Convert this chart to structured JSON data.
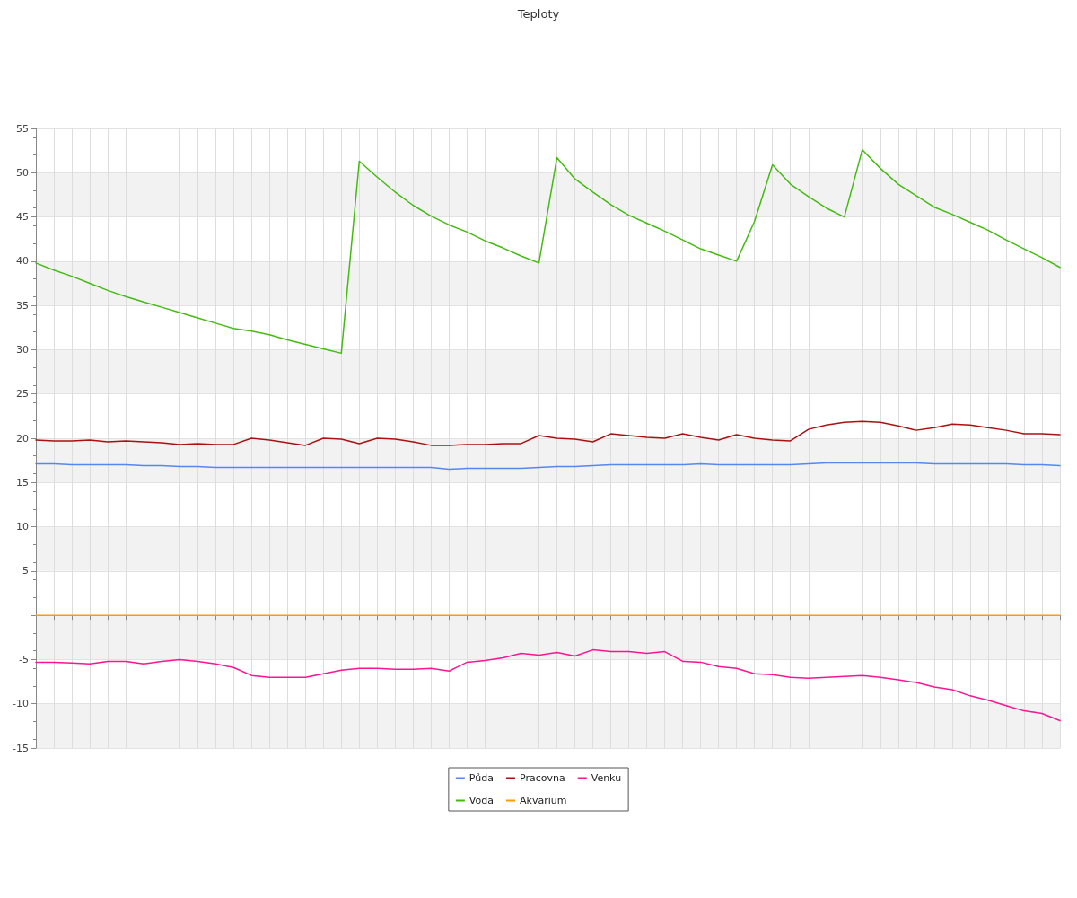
{
  "chart_data": {
    "type": "line",
    "title": "Teploty",
    "categories": [
      null,
      null,
      null,
      null,
      null,
      null,
      null,
      null,
      null,
      null,
      null,
      null,
      null,
      null,
      null,
      null,
      null,
      null,
      null,
      null,
      null,
      null,
      null,
      null,
      null,
      null,
      null,
      null,
      null,
      null,
      null,
      null,
      null,
      null,
      null,
      null,
      null,
      null,
      null,
      null,
      null,
      null,
      null,
      null,
      null,
      null,
      null,
      null,
      null,
      null,
      null,
      null,
      null,
      null,
      null,
      null,
      null,
      null
    ],
    "series": [
      {
        "name": "Půda",
        "color": "#5588ee",
        "values": [
          17.1,
          17.1,
          17.0,
          17.0,
          17.0,
          17.0,
          16.9,
          16.9,
          16.8,
          16.8,
          16.7,
          16.7,
          16.7,
          16.7,
          16.7,
          16.7,
          16.7,
          16.7,
          16.7,
          16.7,
          16.7,
          16.7,
          16.7,
          16.5,
          16.6,
          16.6,
          16.6,
          16.6,
          16.7,
          16.8,
          16.8,
          16.9,
          17.0,
          17.0,
          17.0,
          17.0,
          17.0,
          17.1,
          17.0,
          17.0,
          17.0,
          17.0,
          17.0,
          17.1,
          17.2,
          17.2,
          17.2,
          17.2,
          17.2,
          17.2,
          17.1,
          17.1,
          17.1,
          17.1,
          17.1,
          17.0,
          17.0,
          16.9
        ]
      },
      {
        "name": "Voda",
        "color": "#44bb11",
        "values": [
          39.8,
          39.0,
          38.3,
          37.5,
          36.7,
          36.0,
          35.4,
          34.8,
          34.2,
          33.6,
          33.0,
          32.4,
          32.1,
          31.7,
          31.1,
          30.6,
          30.1,
          29.6,
          51.3,
          49.5,
          47.8,
          46.3,
          45.1,
          44.1,
          43.3,
          42.3,
          41.5,
          40.6,
          39.8,
          51.7,
          49.3,
          47.8,
          46.4,
          45.2,
          44.3,
          43.4,
          42.4,
          41.4,
          40.7,
          40.0,
          44.5,
          50.9,
          48.7,
          47.3,
          46.0,
          45.0,
          52.6,
          50.5,
          48.7,
          47.4,
          46.1,
          45.3,
          44.4,
          43.5,
          42.4,
          41.4,
          40.4,
          39.3
        ]
      },
      {
        "name": "Pracovna",
        "color": "#aa1111",
        "values": [
          19.8,
          19.7,
          19.7,
          19.8,
          19.6,
          19.7,
          19.6,
          19.5,
          19.3,
          19.4,
          19.3,
          19.3,
          20.0,
          19.8,
          19.5,
          19.2,
          20.0,
          19.9,
          19.4,
          20.0,
          19.9,
          19.6,
          19.2,
          19.2,
          19.3,
          19.3,
          19.4,
          19.4,
          20.3,
          20.0,
          19.9,
          19.6,
          20.5,
          20.3,
          20.1,
          20.0,
          20.5,
          20.1,
          19.8,
          20.4,
          20.0,
          19.8,
          19.7,
          21.0,
          21.5,
          21.8,
          21.9,
          21.8,
          21.4,
          20.9,
          21.2,
          21.6,
          21.5,
          21.2,
          20.9,
          20.5,
          20.5,
          20.4
        ]
      },
      {
        "name": "Akvarium",
        "color": "#ff9900",
        "values": [
          0,
          0,
          0,
          0,
          0,
          0,
          0,
          0,
          0,
          0,
          0,
          0,
          0,
          0,
          0,
          0,
          0,
          0,
          0,
          0,
          0,
          0,
          0,
          0,
          0,
          0,
          0,
          0,
          0,
          0,
          0,
          0,
          0,
          0,
          0,
          0,
          0,
          0,
          0,
          0,
          0,
          0,
          0,
          0,
          0,
          0,
          0,
          0,
          0,
          0,
          0,
          0,
          0,
          0,
          0,
          0,
          0,
          0
        ]
      },
      {
        "name": "Venku",
        "color": "#ff1493",
        "values": [
          -5.3,
          -5.3,
          -5.4,
          -5.5,
          -5.2,
          -5.2,
          -5.5,
          -5.2,
          -5.0,
          -5.2,
          -5.5,
          -5.9,
          -6.8,
          -7.0,
          -7.0,
          -7.0,
          -6.6,
          -6.2,
          -6.0,
          -6.0,
          -6.1,
          -6.1,
          -6.0,
          -6.3,
          -5.3,
          -5.1,
          -4.8,
          -4.3,
          -4.5,
          -4.2,
          -4.6,
          -3.9,
          -4.1,
          -4.1,
          -4.3,
          -4.1,
          -5.2,
          -5.3,
          -5.8,
          -6.0,
          -6.6,
          -6.7,
          -7.0,
          -7.1,
          -7.0,
          -6.9,
          -6.8,
          -7.0,
          -7.3,
          -7.6,
          -8.1,
          -8.4,
          -9.1,
          -9.6,
          -10.2,
          -10.8,
          -11.1,
          -11.9
        ]
      }
    ],
    "ylim": [
      -15,
      55
    ],
    "yticks": [
      -15,
      -10,
      -5,
      {
        "value": 0,
        "label": null
      },
      5,
      10,
      15,
      20,
      25,
      30,
      35,
      40,
      45,
      50,
      55
    ],
    "grid": true,
    "legend": "bottom",
    "marker": "none",
    "line_style": "solid"
  }
}
